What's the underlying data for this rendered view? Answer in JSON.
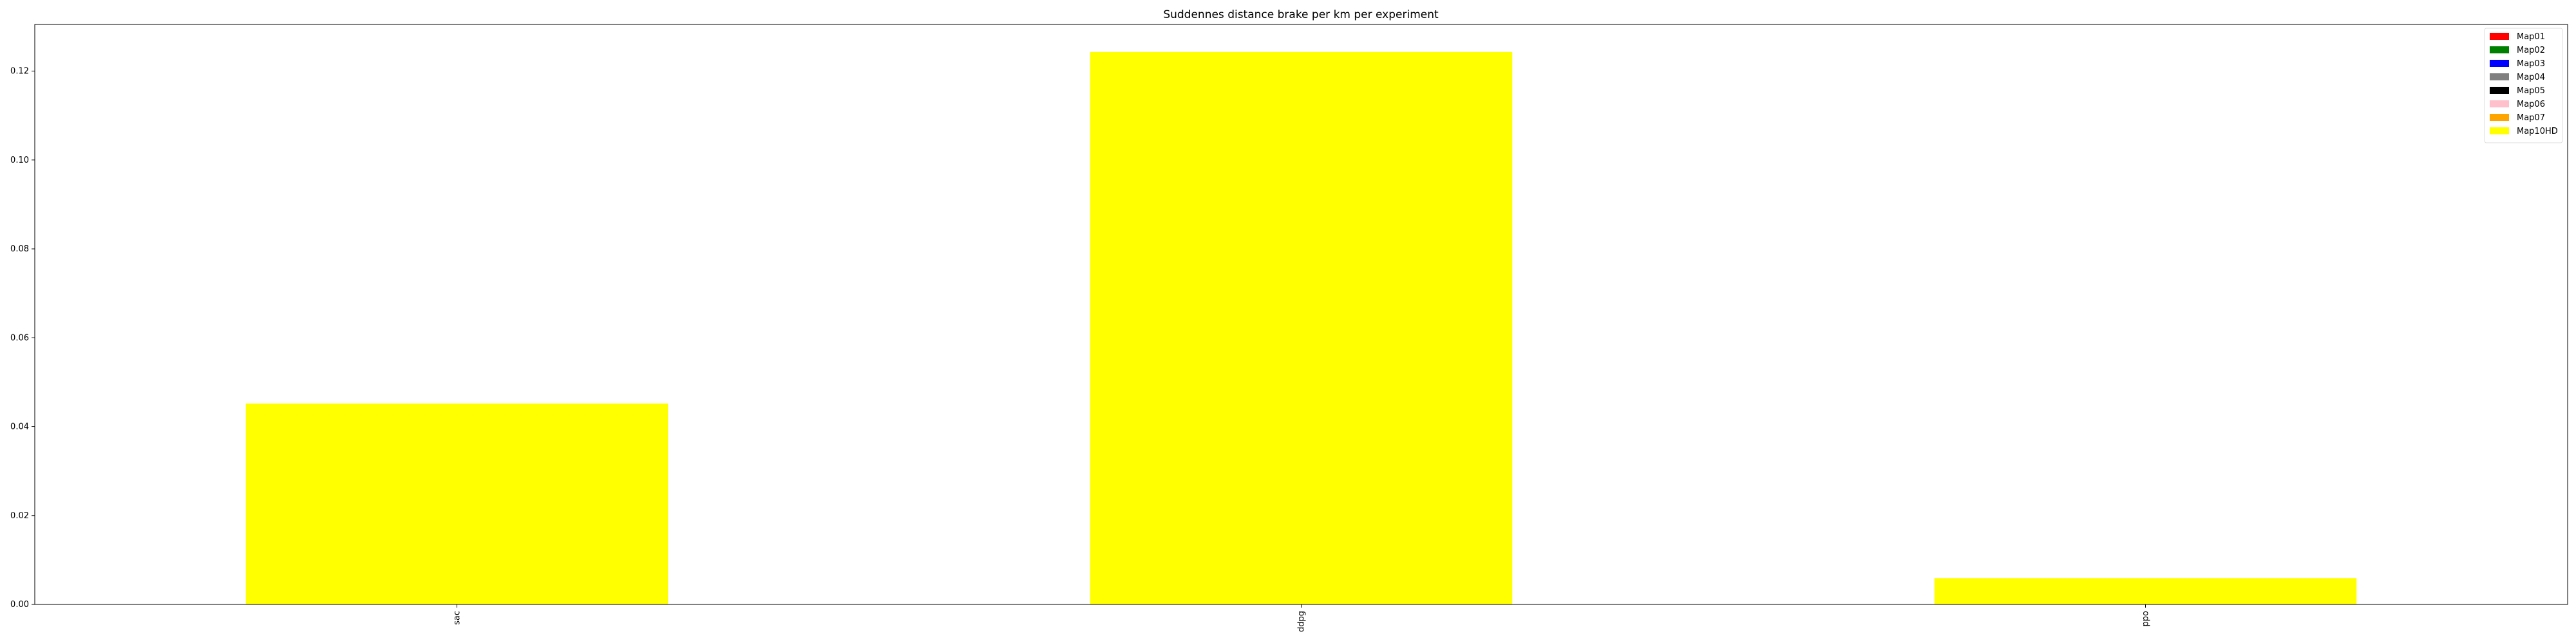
{
  "chart_data": {
    "type": "bar",
    "title": "Suddennes distance brake per km per experiment",
    "xlabel": "",
    "ylabel": "",
    "categories": [
      "sac",
      "ddpg",
      "ppo"
    ],
    "series": [
      {
        "name": "Map01",
        "color": "#ff0000",
        "values": [
          0,
          0,
          0
        ]
      },
      {
        "name": "Map02",
        "color": "#008000",
        "values": [
          0,
          0,
          0
        ]
      },
      {
        "name": "Map03",
        "color": "#0000ff",
        "values": [
          0,
          0,
          0
        ]
      },
      {
        "name": "Map04",
        "color": "#808080",
        "values": [
          0,
          0,
          0
        ]
      },
      {
        "name": "Map05",
        "color": "#000000",
        "values": [
          0,
          0,
          0
        ]
      },
      {
        "name": "Map06",
        "color": "#ffc0cb",
        "values": [
          0,
          0,
          0
        ]
      },
      {
        "name": "Map07",
        "color": "#ffa500",
        "values": [
          0,
          0,
          0
        ]
      },
      {
        "name": "Map10HD",
        "color": "#ffff00",
        "values": [
          0.0452,
          0.1243,
          0.0059
        ]
      }
    ],
    "ylim": [
      0,
      0.1305
    ],
    "yticks": [
      "0.00",
      "0.02",
      "0.04",
      "0.06",
      "0.08",
      "0.10",
      "0.12"
    ],
    "grid": false,
    "legend": "top-right"
  }
}
